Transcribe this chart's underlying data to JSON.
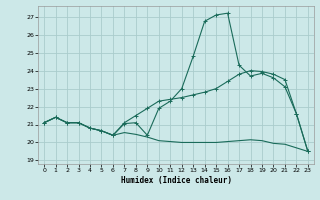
{
  "xlabel": "Humidex (Indice chaleur)",
  "bg_color": "#cce8e8",
  "grid_color": "#aacccc",
  "line_color": "#1a6b5a",
  "xlim": [
    -0.5,
    23.5
  ],
  "ylim": [
    18.8,
    27.6
  ],
  "yticks": [
    19,
    20,
    21,
    22,
    23,
    24,
    25,
    26,
    27
  ],
  "xticks": [
    0,
    1,
    2,
    3,
    4,
    5,
    6,
    7,
    8,
    9,
    10,
    11,
    12,
    13,
    14,
    15,
    16,
    17,
    18,
    19,
    20,
    21,
    22,
    23
  ],
  "series1_y": [
    21.1,
    21.4,
    21.1,
    21.1,
    20.8,
    20.65,
    20.4,
    21.05,
    21.1,
    20.4,
    21.9,
    22.3,
    23.0,
    24.8,
    26.75,
    27.1,
    27.2,
    24.3,
    23.7,
    23.85,
    23.6,
    23.1,
    21.6,
    19.5
  ],
  "series2_y": [
    21.1,
    21.4,
    21.1,
    21.1,
    20.8,
    20.65,
    20.4,
    21.1,
    21.5,
    21.9,
    22.3,
    22.4,
    22.5,
    22.65,
    22.8,
    23.0,
    23.4,
    23.8,
    24.0,
    23.95,
    23.8,
    23.5,
    21.6,
    19.5
  ],
  "series3_y": [
    21.1,
    21.4,
    21.1,
    21.1,
    20.8,
    20.65,
    20.4,
    20.55,
    20.45,
    20.3,
    20.1,
    20.05,
    20.0,
    20.0,
    20.0,
    20.0,
    20.05,
    20.1,
    20.15,
    20.1,
    19.95,
    19.9,
    19.7,
    19.5
  ]
}
